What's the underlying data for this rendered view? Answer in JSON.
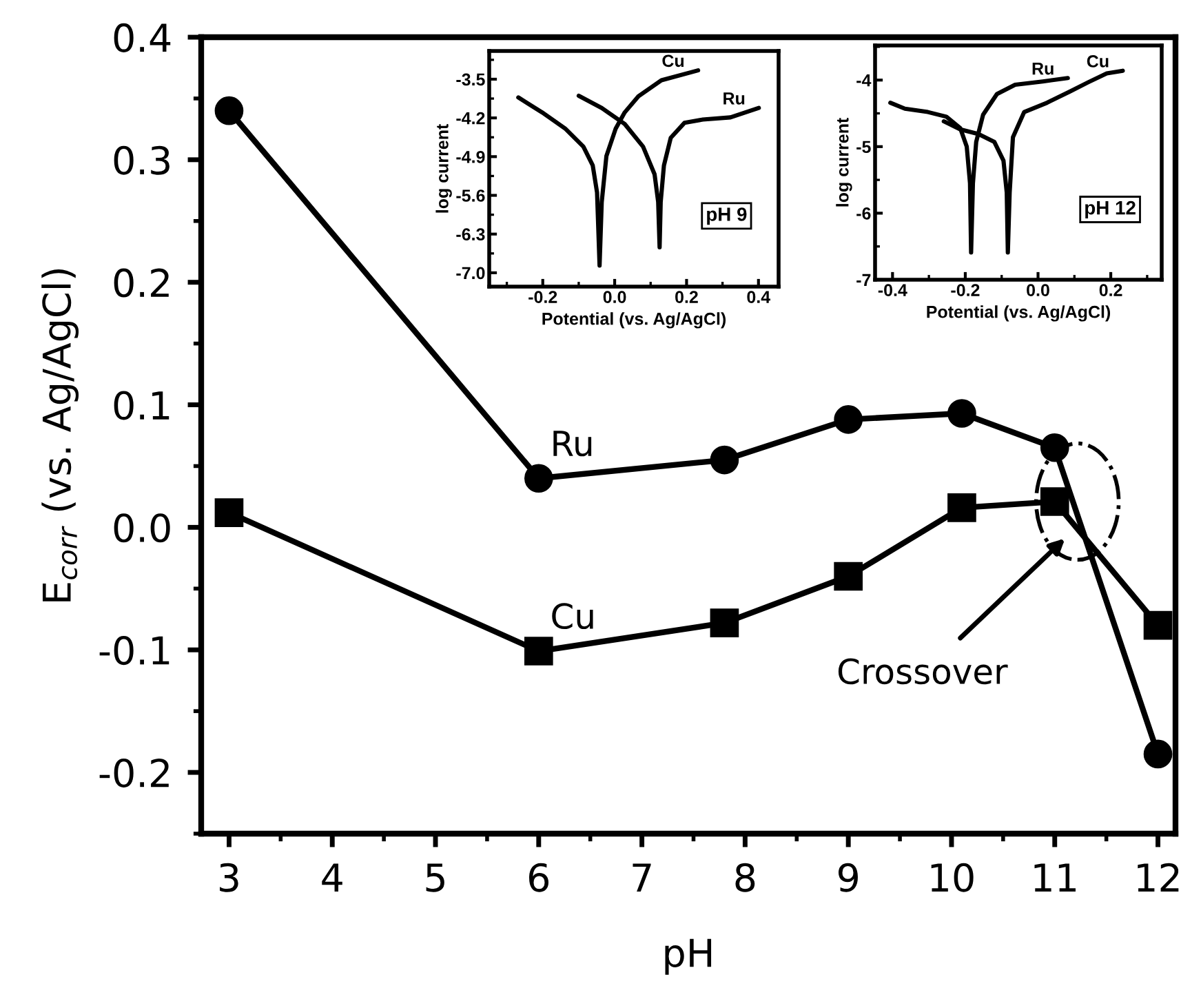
{
  "chart_data": [
    {
      "type": "line",
      "xlabel": "pH",
      "ylabel": "E$_{corr}$ (vs. Ag/AgCl)",
      "x": [
        3,
        6,
        7.8,
        9,
        10.1,
        11,
        12
      ],
      "series": [
        {
          "name": "Ru",
          "color": "#000000",
          "marker": "circle",
          "values": [
            0.34,
            0.04,
            0.055,
            0.088,
            0.093,
            0.065,
            -0.185
          ]
        },
        {
          "name": "Cu",
          "color": "#000000",
          "marker": "square",
          "values": [
            0.012,
            -0.101,
            -0.078,
            -0.04,
            0.016,
            0.021,
            -0.08
          ]
        }
      ],
      "xlim": [
        2.73,
        12.17
      ],
      "ylim": [
        -0.25,
        0.4
      ],
      "xticks": [
        3,
        4,
        5,
        6,
        7,
        8,
        9,
        10,
        11,
        12
      ],
      "yticks": [
        {
          "value": -0.2,
          "label": "-0.2"
        },
        {
          "value": -0.1,
          "label": "-0.1"
        },
        {
          "value": 0.0,
          "label": "0.0"
        },
        {
          "value": 0.1,
          "label": "0.1"
        },
        {
          "value": 0.2,
          "label": "0.2"
        },
        {
          "value": 0.3,
          "label": "0.3"
        },
        {
          "value": 0.4,
          "label": "0.4"
        }
      ],
      "line_style": "solid",
      "grid": false,
      "legend": false,
      "annotations": [
        "Crossover"
      ]
    },
    {
      "type": "line",
      "xlabel": "Potential (vs. Ag/AgCl)",
      "ylabel": "log current",
      "line_style": "solid",
      "grid": false,
      "legend": false,
      "series": [
        {
          "name": "Cu",
          "color": "#000000",
          "x": [
            -0.268,
            -0.202,
            -0.138,
            -0.087,
            -0.061,
            -0.049,
            -0.042,
            -0.036,
            -0.023,
            0.003,
            0.028,
            0.066,
            0.13,
            0.232
          ],
          "values": [
            -3.83,
            -4.1,
            -4.39,
            -4.72,
            -5.06,
            -5.55,
            -6.87,
            -5.72,
            -4.89,
            -4.39,
            -4.1,
            -3.81,
            -3.52,
            -3.34
          ]
        },
        {
          "name": "Ru",
          "color": "#000000",
          "x": [
            -0.1,
            -0.036,
            0.028,
            0.079,
            0.111,
            0.121,
            0.125,
            0.128,
            0.137,
            0.156,
            0.194,
            0.245,
            0.322,
            0.401
          ],
          "values": [
            -3.8,
            -4.02,
            -4.31,
            -4.72,
            -5.22,
            -5.72,
            -6.54,
            -5.72,
            -5.06,
            -4.56,
            -4.29,
            -4.23,
            -4.19,
            -4.02
          ]
        }
      ],
      "xlim": [
        -0.349,
        0.456
      ],
      "ylim": [
        -7.25,
        -2.99
      ],
      "xticks": [
        {
          "value": -0.2,
          "label": "-0.2"
        },
        {
          "value": 0.0,
          "label": "0.0"
        },
        {
          "value": 0.2,
          "label": "0.2"
        },
        {
          "value": 0.4,
          "label": "0.4"
        }
      ],
      "yticks": [
        {
          "value": -7.0,
          "label": "-7.0"
        },
        {
          "value": -6.3,
          "label": "-6.3"
        },
        {
          "value": -5.6,
          "label": "-5.6"
        },
        {
          "value": -4.9,
          "label": "-4.9"
        },
        {
          "value": -4.2,
          "label": "-4.2"
        },
        {
          "value": -3.5,
          "label": "-3.5"
        }
      ],
      "annotations": [
        "pH 9"
      ]
    },
    {
      "type": "line",
      "xlabel": "Potential (vs. Ag/AgCl)",
      "ylabel": "log current",
      "line_style": "solid",
      "grid": false,
      "legend": false,
      "series": [
        {
          "name": "Ru",
          "color": "#000000",
          "x": [
            -0.406,
            -0.366,
            -0.303,
            -0.252,
            -0.214,
            -0.196,
            -0.187,
            -0.184,
            -0.179,
            -0.17,
            -0.151,
            -0.113,
            -0.063,
            0.013,
            0.082
          ],
          "values": [
            -4.34,
            -4.43,
            -4.48,
            -4.55,
            -4.72,
            -5.0,
            -5.55,
            -6.59,
            -5.55,
            -4.93,
            -4.52,
            -4.21,
            -4.07,
            -4.02,
            -3.97
          ]
        },
        {
          "name": "Cu",
          "color": "#000000",
          "x": [
            -0.259,
            -0.214,
            -0.164,
            -0.12,
            -0.095,
            -0.086,
            -0.083,
            -0.078,
            -0.069,
            -0.038,
            0.025,
            0.088,
            0.139,
            0.189,
            0.233
          ],
          "values": [
            -4.62,
            -4.74,
            -4.81,
            -4.93,
            -5.21,
            -5.69,
            -6.59,
            -5.69,
            -4.86,
            -4.48,
            -4.34,
            -4.17,
            -4.03,
            -3.9,
            -3.86
          ]
        }
      ],
      "xlim": [
        -0.448,
        0.34
      ],
      "ylim": [
        -7.0,
        -3.48
      ],
      "xticks": [
        {
          "value": -0.4,
          "label": "-0.4"
        },
        {
          "value": -0.2,
          "label": "-0.2"
        },
        {
          "value": 0.0,
          "label": "0.0"
        },
        {
          "value": 0.2,
          "label": "0.2"
        }
      ],
      "yticks": [
        {
          "value": -7,
          "label": "-7"
        },
        {
          "value": -6,
          "label": "-6"
        },
        {
          "value": -5,
          "label": "-5"
        },
        {
          "value": -4,
          "label": "-4"
        }
      ],
      "annotations": [
        "pH 12"
      ]
    }
  ]
}
